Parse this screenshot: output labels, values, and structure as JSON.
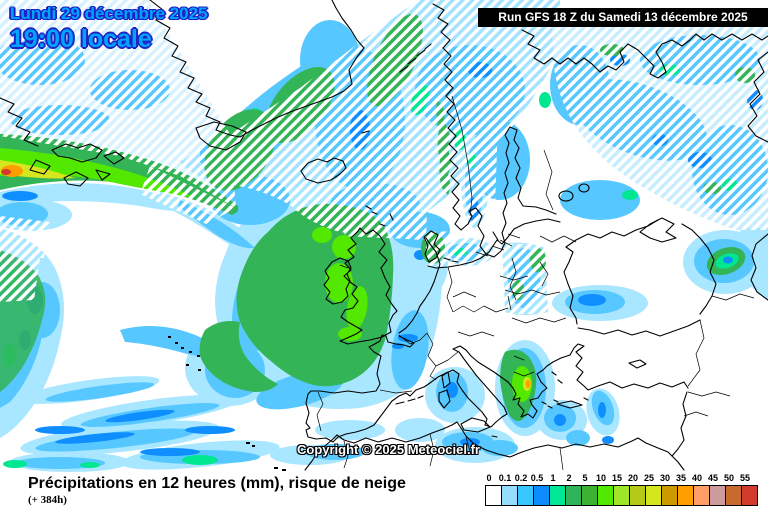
{
  "header": {
    "date_line": "Lundi 29 décembre 2025",
    "time_line": "19:00 locale",
    "run_info": "Run GFS 18 Z du Samedi 13 décembre 2025"
  },
  "map": {
    "copyright": "Copyright © 2025 Meteociel.fr",
    "region": "Europe / North Atlantic",
    "hatch_meaning": "risque de neige (snow risk hatching)"
  },
  "caption": {
    "title": "Précipitations en 12 heures (mm), risque de neige",
    "forecast_offset": "(+ 384h)"
  },
  "legend": {
    "unit": "mm",
    "labels": [
      "0",
      "0.1",
      "0.2",
      "0.5",
      "1",
      "2",
      "5",
      "10",
      "15",
      "20",
      "25",
      "30",
      "35",
      "40",
      "45",
      "50",
      "55"
    ],
    "colors": [
      "#FFFFFF",
      "#96DCFF",
      "#38C6FF",
      "#0A8CFF",
      "#00E896",
      "#2EB55A",
      "#3CB232",
      "#52E800",
      "#9FE62B",
      "#B4C918",
      "#D6E61E",
      "#CC9A00",
      "#FF9E00",
      "#FF9E66",
      "#CC9C9C",
      "#C9682F",
      "#D13B2E"
    ]
  },
  "colors": {
    "date_text": "#00A4FF",
    "date_outline": "#1F23C4",
    "run_bar_bg": "#000000",
    "run_bar_text": "#FFFFFF",
    "precip_light": "#A9E6FF",
    "precip_cyan": "#57C8FF",
    "precip_blue": "#0E8EFF",
    "precip_spring": "#00E792",
    "precip_green": "#33B457",
    "precip_bright": "#52E800",
    "precip_yellow": "#D6E61E",
    "precip_orange": "#FF9E00",
    "precip_red": "#D13B2E"
  }
}
